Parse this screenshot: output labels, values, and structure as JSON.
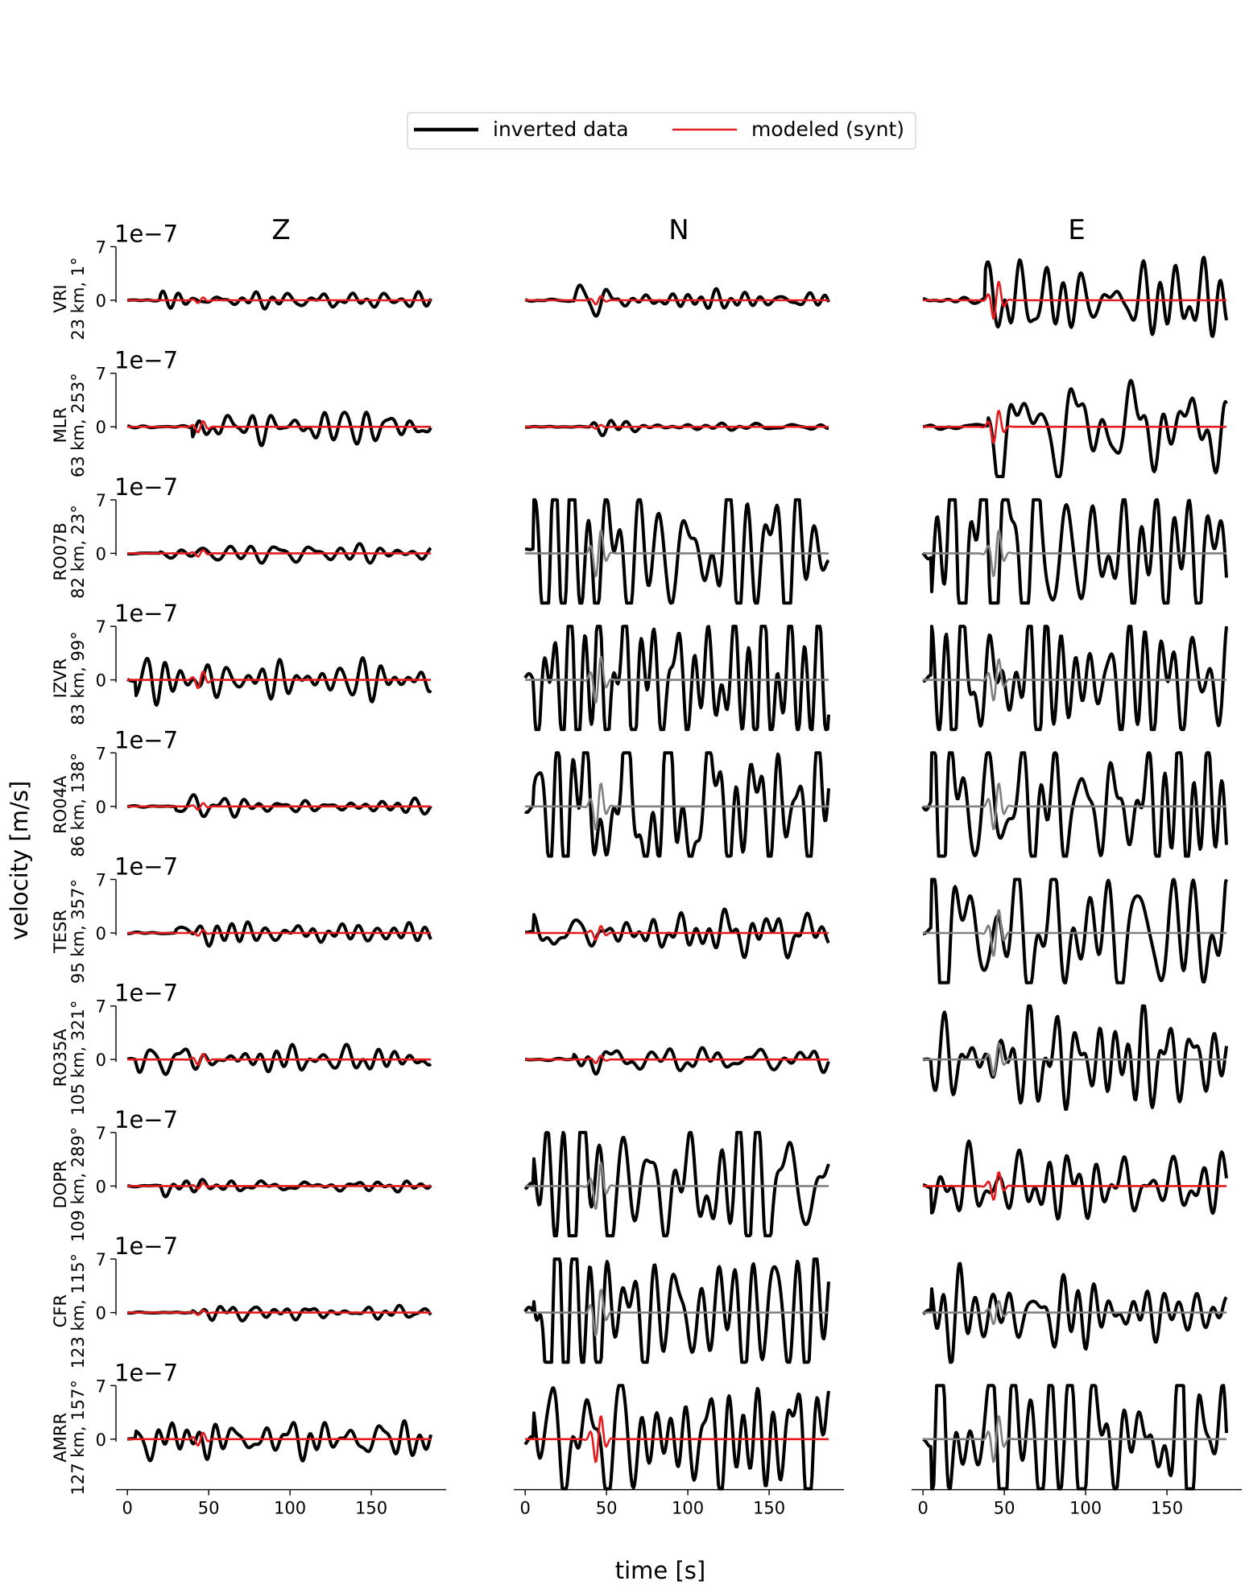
{
  "chart_data": {
    "type": "line",
    "legend": {
      "placement": "top-center",
      "entries": [
        {
          "label": "inverted data",
          "color": "#000000"
        },
        {
          "label": "modeled (synt)",
          "color": "#e41a1c"
        }
      ]
    },
    "components": [
      "Z",
      "N",
      "E"
    ],
    "xlabel": "time [s]",
    "ylabel": "velocity [m/s]",
    "x_ticks": [
      "0",
      "50",
      "100",
      "150"
    ],
    "xlim": [
      -7,
      196
    ],
    "y_scale_label": "1e−7",
    "y_ticks": [
      "0",
      "7"
    ],
    "ylim": [
      -6.5,
      7
    ],
    "colors": {
      "data": "#000000",
      "synt": "#e41a1c",
      "synt_unused": "#808080"
    },
    "stations": [
      {
        "name": "VRI",
        "info": "23 km, 1°",
        "amp": {
          "Z": 0.6,
          "N": 0.9,
          "E": 4.0
        },
        "arrival": {
          "Z": 20,
          "N": 30,
          "E": 38
        },
        "used": {
          "Z": true,
          "N": true,
          "E": true
        }
      },
      {
        "name": "MLR",
        "info": "63 km, 253°",
        "amp": {
          "Z": 1.2,
          "N": 0.4,
          "E": 3.5
        },
        "arrival": {
          "Z": 40,
          "N": 40,
          "E": 40
        },
        "used": {
          "Z": true,
          "N": true,
          "E": true
        }
      },
      {
        "name": "RO07B",
        "info": "82 km, 23°",
        "amp": {
          "Z": 0.7,
          "N": 6.5,
          "E": 7.0
        },
        "arrival": {
          "Z": 20,
          "N": 5,
          "E": 5
        },
        "used": {
          "Z": true,
          "N": false,
          "E": false
        }
      },
      {
        "name": "IZVR",
        "info": "83 km, 99°",
        "amp": {
          "Z": 1.8,
          "N": 7.0,
          "E": 4.5
        },
        "arrival": {
          "Z": 5,
          "N": 5,
          "E": 5
        },
        "used": {
          "Z": true,
          "N": false,
          "E": false
        }
      },
      {
        "name": "RO04A",
        "info": "86 km, 138°",
        "amp": {
          "Z": 0.7,
          "N": 7.0,
          "E": 6.5
        },
        "arrival": {
          "Z": 30,
          "N": 5,
          "E": 5
        },
        "used": {
          "Z": true,
          "N": false,
          "E": false
        }
      },
      {
        "name": "TESR",
        "info": "95 km, 357°",
        "amp": {
          "Z": 0.6,
          "N": 1.5,
          "E": 6.5
        },
        "arrival": {
          "Z": 30,
          "N": 5,
          "E": 5
        },
        "used": {
          "Z": true,
          "N": true,
          "E": false
        }
      },
      {
        "name": "RO35A",
        "info": "105 km, 321°",
        "amp": {
          "Z": 1.2,
          "N": 0.8,
          "E": 3.5
        },
        "arrival": {
          "Z": 5,
          "N": 30,
          "E": 5
        },
        "used": {
          "Z": true,
          "N": true,
          "E": false
        }
      },
      {
        "name": "DOPR",
        "info": "109 km, 289°",
        "amp": {
          "Z": 0.6,
          "N": 6.0,
          "E": 3.0
        },
        "arrival": {
          "Z": 20,
          "N": 5,
          "E": 5
        },
        "used": {
          "Z": true,
          "N": false,
          "E": true
        }
      },
      {
        "name": "CFR",
        "info": "123 km, 115°",
        "amp": {
          "Z": 0.5,
          "N": 6.5,
          "E": 2.5
        },
        "arrival": {
          "Z": 40,
          "N": 5,
          "E": 5
        },
        "used": {
          "Z": true,
          "N": false,
          "E": false
        }
      },
      {
        "name": "AMRR",
        "info": "127 km, 157°",
        "amp": {
          "Z": 1.4,
          "N": 5.0,
          "E": 7.0
        },
        "arrival": {
          "Z": 5,
          "N": 5,
          "E": 5
        },
        "used": {
          "Z": true,
          "N": true,
          "E": false
        }
      }
    ]
  }
}
